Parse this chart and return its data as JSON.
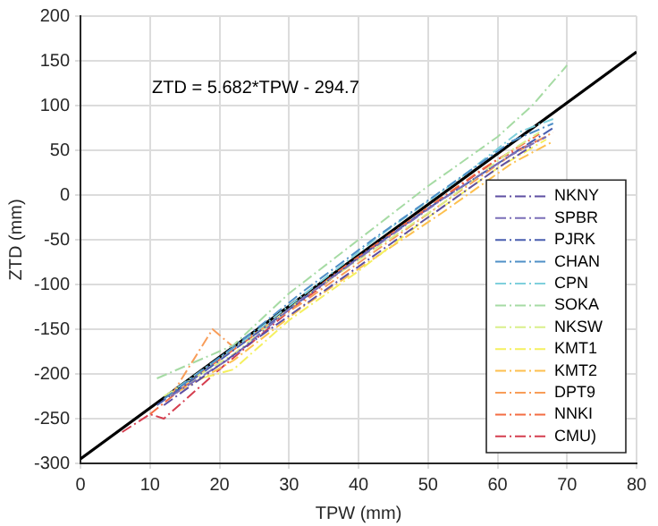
{
  "chart_data": {
    "type": "line",
    "xlabel": "TPW (mm)",
    "ylabel": "ZTD (mm)",
    "xlim": [
      0,
      80
    ],
    "ylim": [
      -300,
      200
    ],
    "xticks": [
      0,
      10,
      20,
      30,
      40,
      50,
      60,
      70,
      80
    ],
    "yticks": [
      -300,
      -250,
      -200,
      -150,
      -100,
      -50,
      0,
      50,
      100,
      150,
      200
    ],
    "grid": true,
    "legend": "bottom right",
    "marker": "none",
    "line_style": "dashed",
    "annotations": [
      "ZTD = 5.682*TPW - 294.7"
    ],
    "series": [
      {
        "name": "NKNY",
        "color": "#5e4fa2",
        "x": [
          12,
          20,
          30,
          40,
          50,
          60,
          65
        ],
        "values": [
          -235,
          -190,
          -135,
          -80,
          -25,
          30,
          55
        ]
      },
      {
        "name": "SPBR",
        "color": "#7b6fb8",
        "x": [
          13,
          22,
          32,
          42,
          52,
          62,
          67
        ],
        "values": [
          -225,
          -180,
          -115,
          -60,
          -5,
          45,
          65
        ]
      },
      {
        "name": "PJRK",
        "color": "#4a5fb0",
        "x": [
          11,
          20,
          30,
          40,
          50,
          60,
          68
        ],
        "values": [
          -235,
          -185,
          -128,
          -70,
          -15,
          35,
          75
        ]
      },
      {
        "name": "CHAN",
        "color": "#4f8fc7",
        "x": [
          12,
          22,
          32,
          42,
          52,
          62,
          68
        ],
        "values": [
          -228,
          -170,
          -108,
          -50,
          5,
          60,
          80
        ]
      },
      {
        "name": "CPN",
        "color": "#7fd0dc",
        "x": [
          14,
          24,
          34,
          44,
          54,
          63,
          68
        ],
        "values": [
          -215,
          -160,
          -100,
          -40,
          15,
          70,
          85
        ]
      },
      {
        "name": "SOKA",
        "color": "#a6dba4",
        "x": [
          11,
          22,
          30,
          40,
          50,
          60,
          65,
          70
        ],
        "values": [
          -205,
          -168,
          -110,
          -50,
          10,
          65,
          100,
          145
        ]
      },
      {
        "name": "NKSW",
        "color": "#d9ef8b",
        "x": [
          12,
          22,
          32,
          42,
          52,
          62,
          66
        ],
        "values": [
          -225,
          -178,
          -115,
          -62,
          -10,
          50,
          70
        ]
      },
      {
        "name": "KMT1",
        "color": "#f5f060",
        "x": [
          15,
          22,
          30,
          40,
          50,
          60,
          67
        ],
        "values": [
          -210,
          -195,
          -140,
          -85,
          -25,
          30,
          62
        ]
      },
      {
        "name": "KMT2",
        "color": "#fdc04f",
        "x": [
          14,
          22,
          32,
          42,
          52,
          62,
          68
        ],
        "values": [
          -220,
          -185,
          -125,
          -72,
          -20,
          35,
          60
        ]
      },
      {
        "name": "DPT9",
        "color": "#f89d59",
        "x": [
          13,
          19,
          22,
          32,
          42,
          52,
          62,
          68
        ],
        "values": [
          -225,
          -150,
          -170,
          -120,
          -65,
          -10,
          45,
          70
        ]
      },
      {
        "name": "NNKI",
        "color": "#f46d43",
        "x": [
          10,
          18,
          28,
          38,
          48,
          58,
          66
        ],
        "values": [
          -245,
          -195,
          -140,
          -80,
          -25,
          30,
          68
        ]
      },
      {
        "name": "CMU)",
        "color": "#d53e4f",
        "x": [
          6,
          10,
          12,
          20,
          30,
          40,
          50,
          60,
          67
        ],
        "values": [
          -265,
          -245,
          -250,
          -195,
          -130,
          -70,
          -15,
          40,
          65
        ]
      },
      {
        "color": "#000000",
        "line_style": "solid",
        "x": [
          0,
          80
        ],
        "values": [
          -295,
          160
        ]
      }
    ]
  }
}
